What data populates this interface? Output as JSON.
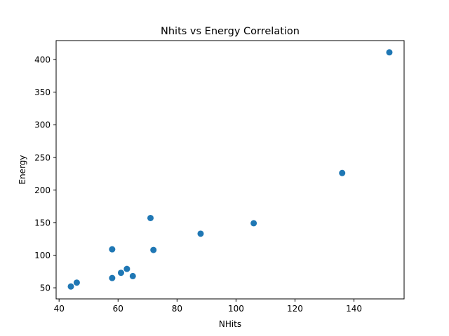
{
  "chart_data": {
    "type": "scatter",
    "title": "Nhits vs Energy Correlation",
    "xlabel": "NHits",
    "ylabel": "Energy",
    "xlim": [
      39,
      157
    ],
    "ylim": [
      33,
      429
    ],
    "xticks": [
      40,
      60,
      80,
      100,
      120,
      140
    ],
    "yticks": [
      50,
      100,
      150,
      200,
      250,
      300,
      350,
      400
    ],
    "grid": false,
    "point_color": "#1f77b4",
    "points": [
      {
        "x": 44,
        "y": 52
      },
      {
        "x": 46,
        "y": 58
      },
      {
        "x": 58,
        "y": 65
      },
      {
        "x": 58,
        "y": 109
      },
      {
        "x": 61,
        "y": 73
      },
      {
        "x": 63,
        "y": 79
      },
      {
        "x": 65,
        "y": 68
      },
      {
        "x": 71,
        "y": 157
      },
      {
        "x": 72,
        "y": 108
      },
      {
        "x": 88,
        "y": 133
      },
      {
        "x": 106,
        "y": 149
      },
      {
        "x": 136,
        "y": 226
      },
      {
        "x": 152,
        "y": 411
      }
    ]
  }
}
